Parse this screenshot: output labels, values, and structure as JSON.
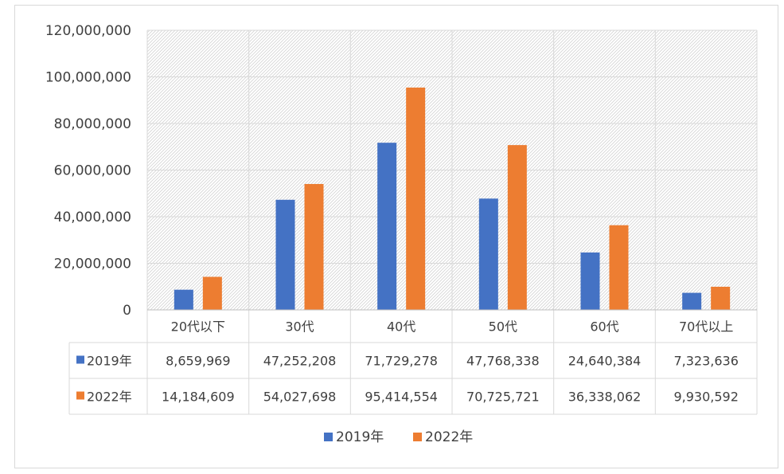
{
  "chart_data": {
    "type": "bar",
    "categories": [
      "20代以下",
      "30代",
      "40代",
      "50代",
      "60代",
      "70代以上"
    ],
    "series": [
      {
        "name": "2019年",
        "color": "#4472c4",
        "values": [
          8659969,
          47252208,
          71729278,
          47768338,
          24640384,
          7323636
        ],
        "labels": [
          "8,659,969",
          "47,252,208",
          "71,729,278",
          "47,768,338",
          "24,640,384",
          "7,323,636"
        ]
      },
      {
        "name": "2022年",
        "color": "#ed7d31",
        "values": [
          14184609,
          54027698,
          95414554,
          70725721,
          36338062,
          9930592
        ],
        "labels": [
          "14,184,609",
          "54,027,698",
          "95,414,554",
          "70,725,721",
          "36,338,062",
          "9,930,592"
        ]
      }
    ],
    "ylim": [
      0,
      120000000
    ],
    "yticks": [
      0,
      20000000,
      40000000,
      60000000,
      80000000,
      100000000,
      120000000
    ],
    "ytick_labels": [
      "0",
      "20,000,000",
      "40,000,000",
      "60,000,000",
      "80,000,000",
      "100,000,000",
      "120,000,000"
    ],
    "grid": true,
    "legend_position": "bottom",
    "data_table": true,
    "title": "",
    "xlabel": "",
    "ylabel": ""
  }
}
